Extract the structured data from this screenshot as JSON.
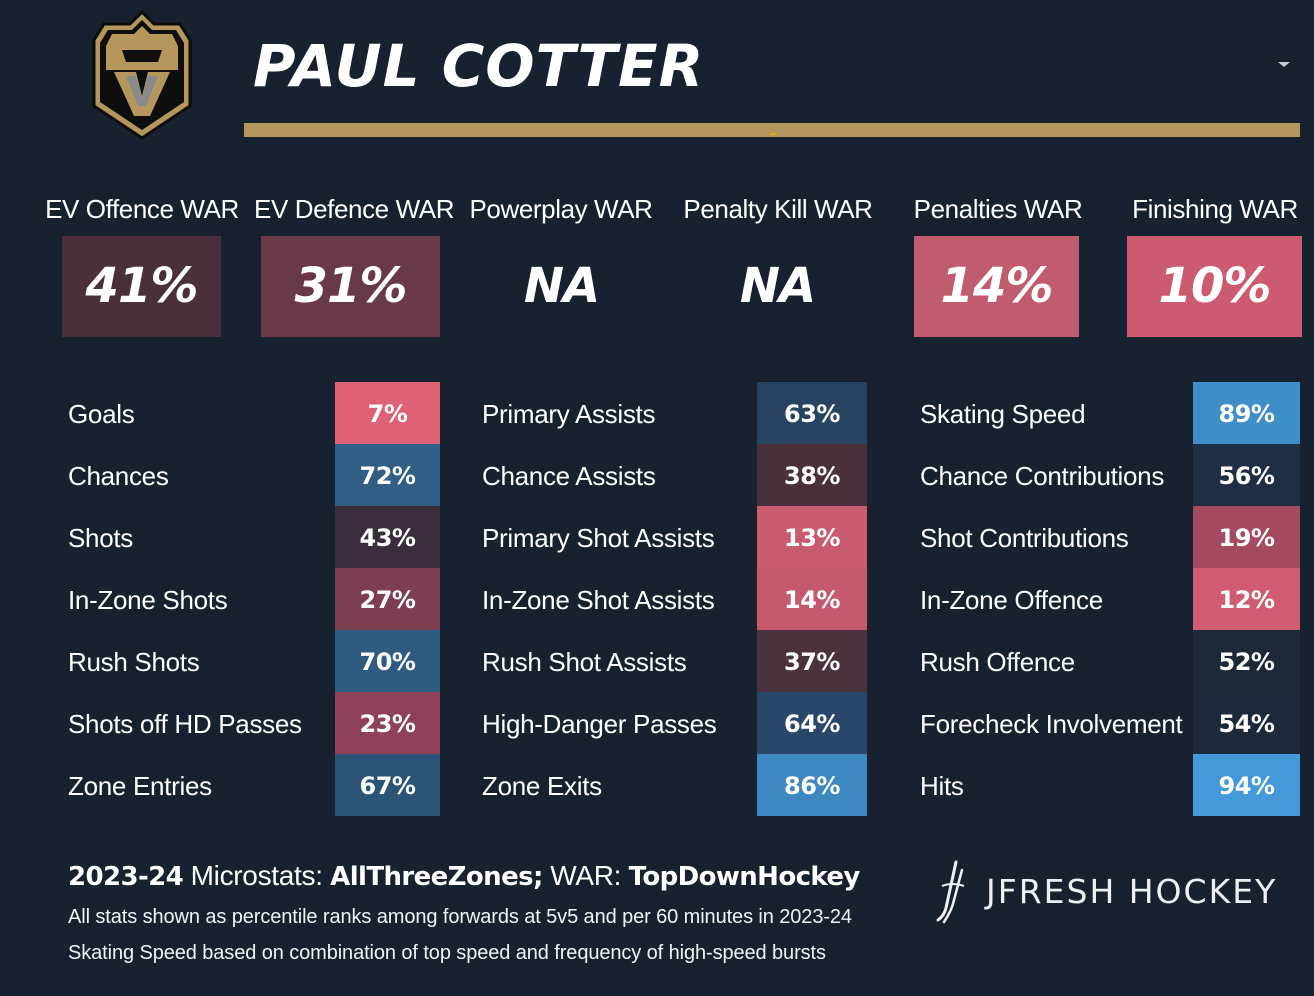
{
  "player": {
    "name": "PAUL COTTER"
  },
  "war": [
    {
      "label": "EV Offence WAR",
      "value": "41%",
      "color": "#4a303d"
    },
    {
      "label": "EV Defence WAR",
      "value": "31%",
      "color": "#6a3948"
    },
    {
      "label": "Powerplay WAR",
      "value": "NA",
      "color": "#172130"
    },
    {
      "label": "Penalty Kill WAR",
      "value": "NA",
      "color": "#172130"
    },
    {
      "label": "Penalties WAR",
      "value": "14%",
      "color": "#c05c6e"
    },
    {
      "label": "Finishing WAR",
      "value": "10%",
      "color": "#cc5a70"
    }
  ],
  "columns": [
    [
      {
        "label": "Goals",
        "value": "7%",
        "color": "#de6176"
      },
      {
        "label": "Chances",
        "value": "72%",
        "color": "#305e85"
      },
      {
        "label": "Shots",
        "value": "43%",
        "color": "#3a2d3c"
      },
      {
        "label": "In-Zone Shots",
        "value": "27%",
        "color": "#7e3e52"
      },
      {
        "label": "Rush Shots",
        "value": "70%",
        "color": "#2f5b80"
      },
      {
        "label": "Shots off HD Passes",
        "value": "23%",
        "color": "#8e4157"
      },
      {
        "label": "Zone Entries",
        "value": "67%",
        "color": "#2c5477"
      }
    ],
    [
      {
        "label": "Primary Assists",
        "value": "63%",
        "color": "#284460"
      },
      {
        "label": "Chance Assists",
        "value": "38%",
        "color": "#4a303d"
      },
      {
        "label": "Primary Shot Assists",
        "value": "13%",
        "color": "#c95b6f"
      },
      {
        "label": "In-Zone Shot Assists",
        "value": "14%",
        "color": "#c55a6d"
      },
      {
        "label": "Rush Shot Assists",
        "value": "37%",
        "color": "#4c313e"
      },
      {
        "label": "High-Danger Passes",
        "value": "64%",
        "color": "#28476a"
      },
      {
        "label": "Zone Exits",
        "value": "86%",
        "color": "#3d88c0"
      }
    ],
    [
      {
        "label": "Skating Speed",
        "value": "89%",
        "color": "#3e8ec8"
      },
      {
        "label": "Chance Contributions",
        "value": "56%",
        "color": "#1e2f43"
      },
      {
        "label": "Shot Contributions",
        "value": "19%",
        "color": "#a44b61"
      },
      {
        "label": "In-Zone Offence",
        "value": "12%",
        "color": "#d05c71"
      },
      {
        "label": "Rush Offence",
        "value": "52%",
        "color": "#1d2839"
      },
      {
        "label": "Forecheck Involvement",
        "value": "54%",
        "color": "#1d2a3c"
      },
      {
        "label": "Hits",
        "value": "94%",
        "color": "#4499d8"
      }
    ]
  ],
  "footer": {
    "season": "2023-24",
    "microstats_label": "Microstats:",
    "microstats_source": "AllThreeZones;",
    "war_label": "WAR:",
    "war_source": "TopDownHockey",
    "note1": "All stats shown as percentile ranks among forwards at 5v5 and per 60 minutes in 2023-24",
    "note2": "Skating Speed based on combination of top speed and frequency of high-speed bursts"
  },
  "brand": {
    "name": "JFRESH HOCKEY"
  },
  "icons": {
    "logo": "golden-knights-helmet-icon",
    "dropdown": "chevron-down-icon",
    "brand": "hockey-stick-icon"
  }
}
